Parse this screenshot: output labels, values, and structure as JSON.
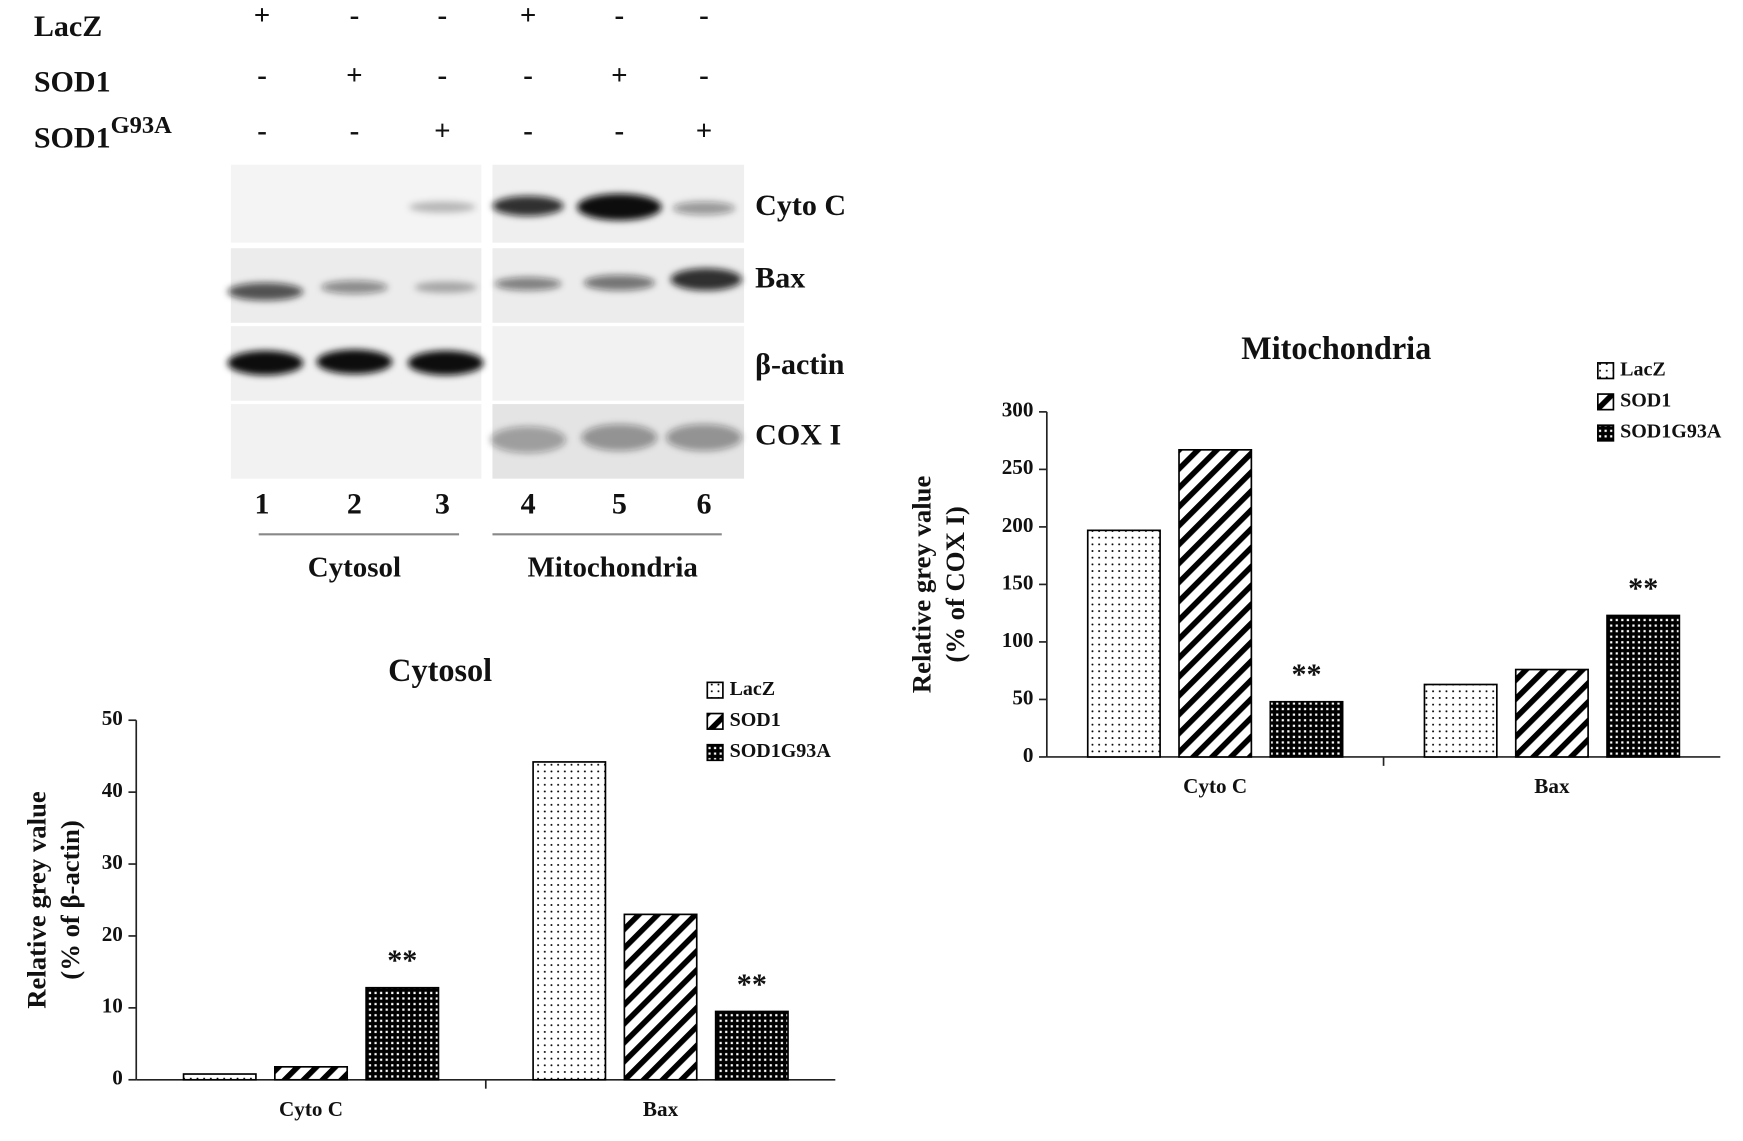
{
  "blot": {
    "rows": [
      {
        "label": "LacZ",
        "signs": [
          "+",
          "-",
          "-",
          "+",
          "-",
          "-"
        ]
      },
      {
        "label": "SOD1",
        "signs": [
          "-",
          "+",
          "-",
          "-",
          "+",
          "-"
        ]
      },
      {
        "label": "SOD1",
        "sup": "G93A",
        "signs": [
          "-",
          "-",
          "+",
          "-",
          "-",
          "+"
        ]
      }
    ],
    "proteins": [
      "Cyto C",
      "Bax",
      "β-actin",
      "COX I"
    ],
    "lanes": [
      "1",
      "2",
      "3",
      "4",
      "5",
      "6"
    ],
    "fractions": [
      "Cytosol",
      "Mitochondria"
    ]
  },
  "chart_data": [
    {
      "type": "bar",
      "title": "Cytosol",
      "ylabel": [
        "Relative grey value",
        "(% of β-actin)"
      ],
      "categories": [
        "Cyto C",
        "Bax"
      ],
      "series": [
        {
          "name": "LacZ",
          "color": "#000000",
          "pattern": "dots",
          "values": [
            0.8,
            44.2
          ]
        },
        {
          "name": "SOD1",
          "color": "#000000",
          "pattern": "stripes",
          "values": [
            1.8,
            23
          ]
        },
        {
          "name": "SOD1G93A",
          "color": "#000000",
          "pattern": "crosshatch",
          "values": [
            12.8,
            9.5
          ],
          "annotations": [
            "**",
            "**"
          ]
        }
      ],
      "ylim": [
        0,
        50
      ],
      "yticks": [
        0,
        10,
        20,
        30,
        40,
        50
      ],
      "grid": false,
      "legend": "top-right"
    },
    {
      "type": "bar",
      "title": "Mitochondria",
      "ylabel": [
        "Relative grey value",
        "(% of COX I)"
      ],
      "categories": [
        "Cyto C",
        "Bax"
      ],
      "series": [
        {
          "name": "LacZ",
          "color": "#000000",
          "pattern": "dots",
          "values": [
            197,
            63
          ]
        },
        {
          "name": "SOD1",
          "color": "#000000",
          "pattern": "stripes",
          "values": [
            267,
            76
          ]
        },
        {
          "name": "SOD1G93A",
          "color": "#000000",
          "pattern": "crosshatch",
          "values": [
            48,
            123
          ],
          "annotations": [
            "**",
            "**"
          ]
        }
      ],
      "ylim": [
        0,
        300
      ],
      "yticks": [
        0,
        50,
        100,
        150,
        200,
        250,
        300
      ],
      "grid": false,
      "legend": "top-right"
    }
  ]
}
